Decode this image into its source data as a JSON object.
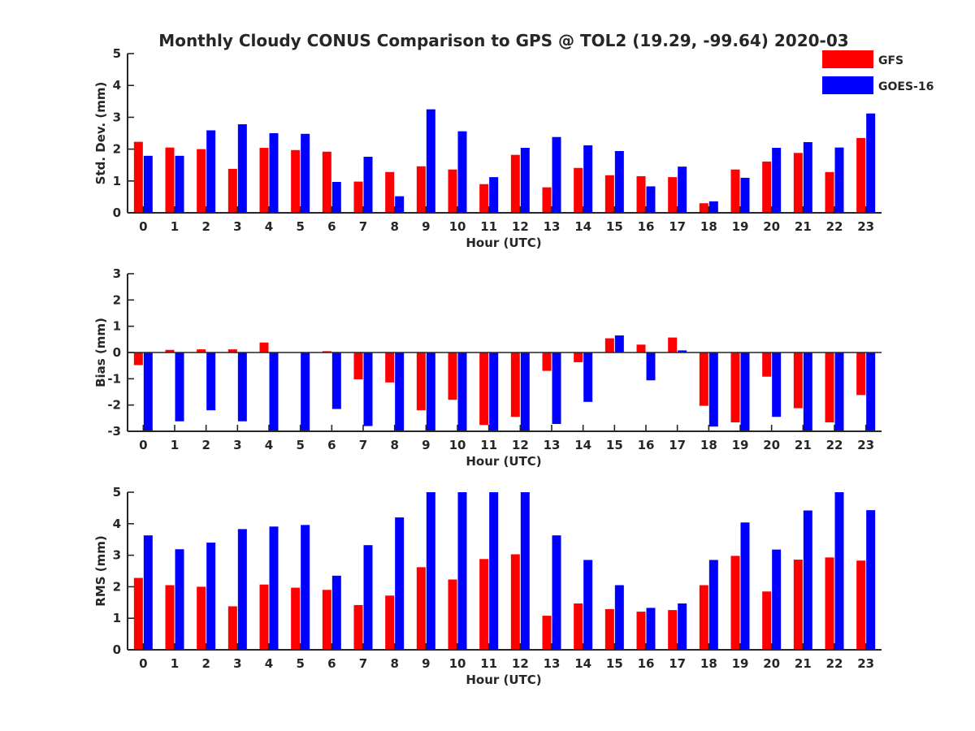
{
  "chart_data": {
    "title": "Monthly Cloudy CONUS Comparison to GPS @ TOL2 (19.29, -99.64) 2020-03",
    "type": "bar",
    "legend": {
      "placement": "top-right",
      "entries": [
        {
          "name": "GFS",
          "color": "#ff0000"
        },
        {
          "name": "GOES-16",
          "color": "#0000ff"
        }
      ]
    },
    "panels": [
      {
        "type": "bar",
        "xlabel": "Hour (UTC)",
        "ylabel": "Std. Dev. (mm)",
        "ylim": [
          0,
          5
        ],
        "yticks": [
          0,
          1,
          2,
          3,
          4,
          5
        ],
        "categories": [
          "0",
          "1",
          "2",
          "3",
          "4",
          "5",
          "6",
          "7",
          "8",
          "9",
          "10",
          "11",
          "12",
          "13",
          "14",
          "15",
          "16",
          "17",
          "18",
          "19",
          "20",
          "21",
          "22",
          "23"
        ],
        "series": [
          {
            "name": "GFS",
            "color": "#ff0000",
            "values": [
              2.23,
              2.05,
              2.0,
              1.38,
              2.04,
              1.97,
              1.92,
              0.98,
              1.28,
              1.46,
              1.36,
              0.9,
              1.82,
              0.8,
              1.41,
              1.18,
              1.15,
              1.12,
              0.3,
              1.36,
              1.61,
              1.88,
              1.28,
              2.35
            ]
          },
          {
            "name": "GOES-16",
            "color": "#0000ff",
            "values": [
              1.79,
              1.79,
              2.59,
              2.78,
              2.5,
              2.48,
              0.97,
              1.76,
              0.52,
              3.25,
              2.56,
              1.12,
              2.04,
              2.38,
              2.12,
              1.94,
              0.83,
              1.45,
              0.36,
              1.1,
              2.04,
              2.22,
              2.05,
              3.12
            ]
          }
        ]
      },
      {
        "type": "bar",
        "xlabel": "Hour (UTC)",
        "ylabel": "Bias (mm)",
        "ylim": [
          -3,
          3
        ],
        "yticks": [
          -3,
          -2,
          -1,
          0,
          1,
          2,
          3
        ],
        "zero_line": true,
        "categories": [
          "0",
          "1",
          "2",
          "3",
          "4",
          "5",
          "6",
          "7",
          "8",
          "9",
          "10",
          "11",
          "12",
          "13",
          "14",
          "15",
          "16",
          "17",
          "18",
          "19",
          "20",
          "21",
          "22",
          "23"
        ],
        "series": [
          {
            "name": "GFS",
            "color": "#ff0000",
            "values": [
              -0.48,
              0.1,
              0.12,
              0.12,
              0.38,
              0.0,
              0.05,
              -1.02,
              -1.14,
              -2.2,
              -1.8,
              -2.76,
              -2.45,
              -0.7,
              -0.37,
              0.54,
              0.3,
              0.57,
              -2.03,
              -2.66,
              -0.92,
              -2.12,
              -2.66,
              -1.62
            ]
          },
          {
            "name": "GOES-16",
            "color": "#0000ff",
            "values": [
              -3.0,
              -2.62,
              -2.2,
              -2.62,
              -3.0,
              -3.0,
              -2.15,
              -2.8,
              -3.0,
              -3.0,
              -3.0,
              -3.0,
              -3.0,
              -2.72,
              -1.88,
              0.65,
              -1.06,
              0.08,
              -2.82,
              -3.0,
              -2.45,
              -3.0,
              -3.0,
              -3.0
            ]
          }
        ]
      },
      {
        "type": "bar",
        "xlabel": "Hour (UTC)",
        "ylabel": "RMS (mm)",
        "ylim": [
          0,
          5
        ],
        "yticks": [
          0,
          1,
          2,
          3,
          4,
          5
        ],
        "categories": [
          "0",
          "1",
          "2",
          "3",
          "4",
          "5",
          "6",
          "7",
          "8",
          "9",
          "10",
          "11",
          "12",
          "13",
          "14",
          "15",
          "16",
          "17",
          "18",
          "19",
          "20",
          "21",
          "22",
          "23"
        ],
        "series": [
          {
            "name": "GFS",
            "color": "#ff0000",
            "values": [
              2.28,
              2.05,
              2.0,
              1.38,
              2.07,
              1.97,
              1.9,
              1.42,
              1.72,
              2.62,
              2.23,
              2.88,
              3.03,
              1.08,
              1.47,
              1.29,
              1.21,
              1.26,
              2.05,
              2.98,
              1.85,
              2.86,
              2.93,
              2.83
            ]
          },
          {
            "name": "GOES-16",
            "color": "#0000ff",
            "values": [
              3.63,
              3.19,
              3.4,
              3.83,
              3.91,
              3.96,
              2.35,
              3.32,
              4.2,
              5.0,
              5.0,
              5.0,
              5.0,
              3.63,
              2.85,
              2.05,
              1.33,
              1.47,
              2.85,
              4.04,
              3.18,
              4.42,
              5.0,
              4.43
            ]
          }
        ]
      }
    ]
  }
}
